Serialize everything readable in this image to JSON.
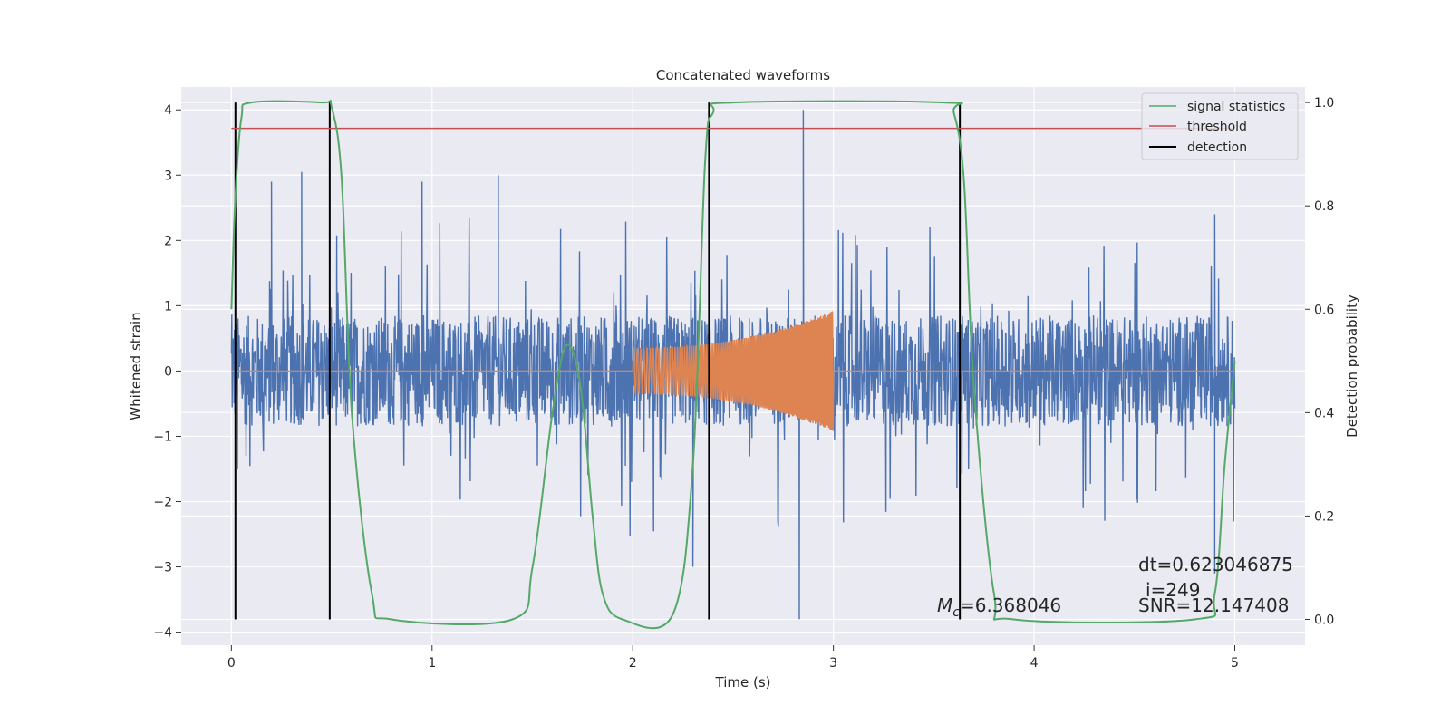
{
  "chart_data": {
    "type": "line",
    "title": "Concatenated waveforms",
    "xlabel": "Time (s)",
    "ylabel": "Whitened strain",
    "ylabel_right": "Detection probability",
    "xlim": [
      -0.25,
      5.35
    ],
    "ylim": [
      -4.2,
      4.35
    ],
    "ylim_right": [
      -0.05,
      1.03
    ],
    "x_ticks": [
      "0",
      "1",
      "2",
      "3",
      "4",
      "5"
    ],
    "y_ticks": [
      "−4",
      "−3",
      "−2",
      "−1",
      "0",
      "1",
      "2",
      "3",
      "4"
    ],
    "y_ticks_right": [
      "0.0",
      "0.2",
      "0.4",
      "0.6",
      "0.8",
      "1.0"
    ],
    "grid": true,
    "legend_position": "top-right",
    "legend": [
      "signal statistics",
      "threshold",
      "detection"
    ],
    "colors": {
      "noise": "#4c72b0",
      "signal": "#dd8452",
      "statistics": "#55a868",
      "threshold": "#c44e52",
      "detection": "#000000",
      "axes_bg": "#eaeaf2",
      "grid": "#ffffff"
    },
    "series": [
      {
        "axis": "left",
        "description": "whitened strain noise, approx. uniform band within [-2.8, 3.0] with spikes up to 4.0 and -3.8, t from 0 to 5",
        "x_range": [
          0,
          5
        ],
        "amplitude_core": 0.85,
        "peaks": [
          [
            0.03,
            -1.5
          ],
          [
            0.2,
            2.9
          ],
          [
            0.35,
            3.05
          ],
          [
            0.95,
            2.9
          ],
          [
            1.33,
            3.0
          ],
          [
            2.85,
            4.0
          ],
          [
            2.83,
            -3.8
          ],
          [
            2.3,
            -3.0
          ],
          [
            4.9,
            -3.1
          ],
          [
            4.9,
            2.4
          ]
        ]
      },
      {
        "axis": "left",
        "description": "injected chirp signal, zero outside [2, 3], amplitude growing from 0.35 to 0.92",
        "x_range": [
          0,
          5
        ],
        "chirp": {
          "t_start": 2.0,
          "t_end": 3.0,
          "amp_start": 0.35,
          "amp_end": 0.92
        }
      },
      {
        "name": "signal statistics",
        "axis": "right",
        "x": [
          0.0,
          0.02,
          0.05,
          0.1,
          0.45,
          0.5,
          0.55,
          0.6,
          0.7,
          0.8,
          1.4,
          1.5,
          1.6,
          1.67,
          1.74,
          1.8,
          1.85,
          1.95,
          2.2,
          2.3,
          2.36,
          2.4,
          2.5,
          3.55,
          3.6,
          3.65,
          3.7,
          3.8,
          3.9,
          4.8,
          4.9,
          4.95,
          5.0
        ],
        "y": [
          0.6,
          0.82,
          0.97,
          1.0,
          1.0,
          0.99,
          0.85,
          0.4,
          0.05,
          0.0,
          0.0,
          0.1,
          0.4,
          0.53,
          0.45,
          0.2,
          0.05,
          0.0,
          0.01,
          0.3,
          0.88,
          0.98,
          1.0,
          1.0,
          0.98,
          0.85,
          0.45,
          0.05,
          0.0,
          0.0,
          0.05,
          0.3,
          0.5
        ]
      },
      {
        "name": "threshold",
        "axis": "right",
        "x": [
          0,
          5
        ],
        "y": [
          0.95,
          0.95
        ]
      }
    ],
    "detections": [
      0.02,
      0.49,
      2.38,
      3.63
    ],
    "annotations": {
      "mc": "=6.368046",
      "mc_symbol": "M",
      "mc_sub": "c",
      "dt": "dt=0.623046875",
      "i": "i=249",
      "snr": "SNR=12.147408"
    }
  }
}
